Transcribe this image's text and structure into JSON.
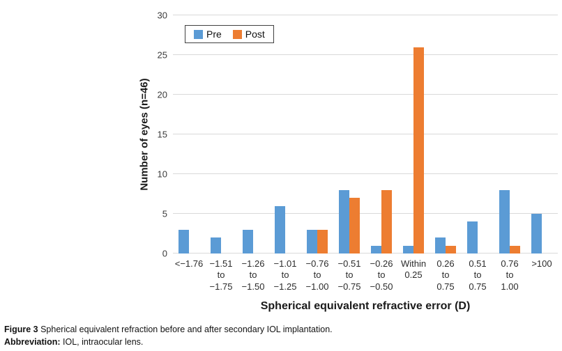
{
  "figure": {
    "caption_label": "Figure 3",
    "caption_text": " Spherical equivalent refraction before and after secondary IOL implantation.",
    "abbrev_label": "Abbreviation:",
    "abbrev_text": " IOL, intraocular lens."
  },
  "chart_data": {
    "type": "bar",
    "title": "",
    "xlabel": "Spherical equivalent refractive error (D)",
    "ylabel": "Number of eyes (n=46)",
    "ylim": [
      0,
      30
    ],
    "ytick_step": 5,
    "grid": true,
    "legend_position": "top-left-inside",
    "categories": [
      "<−1.76",
      "−1.51 to −1.75",
      "−1.26 to −1.50",
      "−1.01 to −1.25",
      "−0.76 to −1.00",
      "−0.51 to −0.75",
      "−0.26 to −0.50",
      "Within 0.25",
      "0.26 to 0.75",
      "0.51 to 0.75",
      "0.76 to 1.00",
      ">100"
    ],
    "category_label_lines": [
      [
        "<−1.76"
      ],
      [
        "−1.51",
        "to",
        "−1.75"
      ],
      [
        "−1.26",
        "to",
        "−1.50"
      ],
      [
        "−1.01",
        "to",
        "−1.25"
      ],
      [
        "−0.76",
        "to",
        "−1.00"
      ],
      [
        "−0.51",
        "to",
        "−0.75"
      ],
      [
        "−0.26",
        "to",
        "−0.50"
      ],
      [
        "Within",
        "0.25"
      ],
      [
        "0.26",
        "to",
        "0.75"
      ],
      [
        "0.51",
        "to",
        "0.75"
      ],
      [
        "0.76",
        "to",
        "1.00"
      ],
      [
        ">100"
      ]
    ],
    "series": [
      {
        "name": "Pre",
        "color": "#5B9BD5",
        "values": [
          3,
          2,
          3,
          6,
          3,
          8,
          1,
          1,
          2,
          4,
          8,
          5
        ]
      },
      {
        "name": "Post",
        "color": "#ED7D31",
        "values": [
          0,
          0,
          0,
          0,
          3,
          7,
          8,
          26,
          1,
          0,
          1,
          0
        ]
      }
    ]
  },
  "colors": {
    "pre": "#5B9BD5",
    "post": "#ED7D31",
    "gridline": "#D9D9D9"
  }
}
